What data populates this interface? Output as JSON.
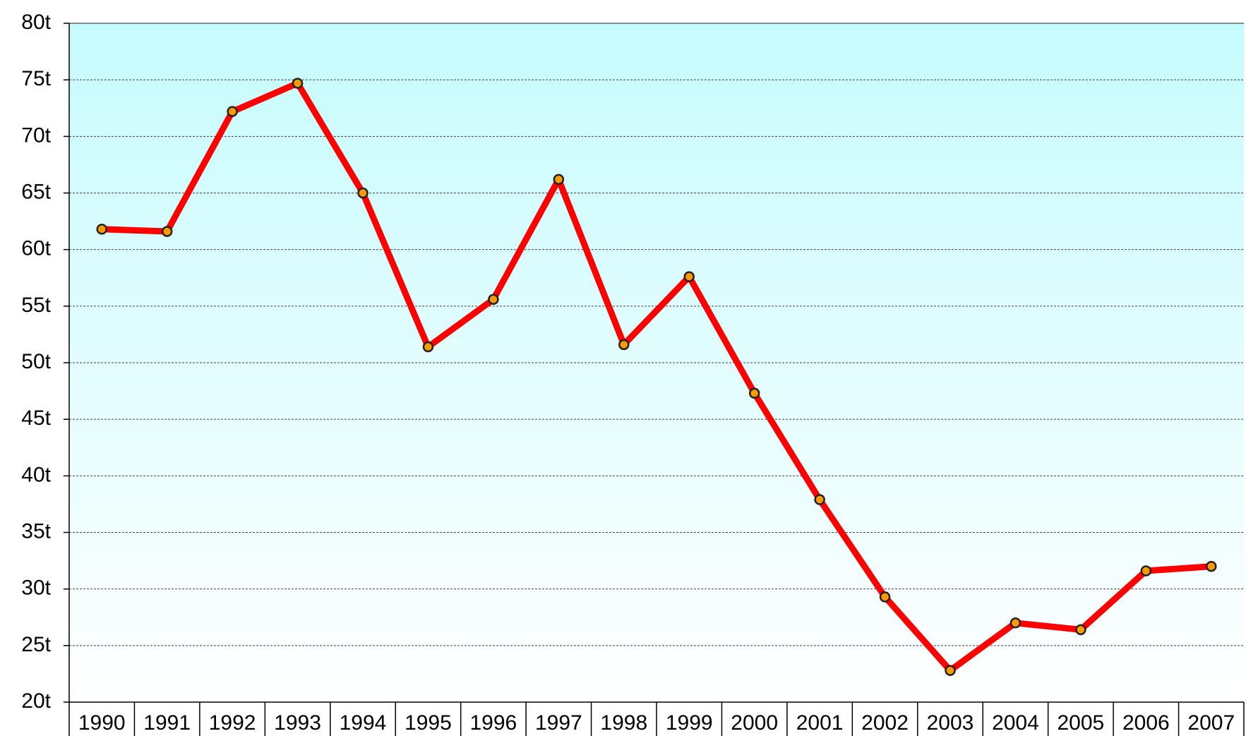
{
  "chart_data": {
    "type": "line",
    "categories": [
      "1990",
      "1991",
      "1992",
      "1993",
      "1994",
      "1995",
      "1996",
      "1997",
      "1998",
      "1999",
      "2000",
      "2001",
      "2002",
      "2003",
      "2004",
      "2005",
      "2006",
      "2007"
    ],
    "values": [
      61.8,
      61.6,
      72.2,
      74.7,
      65.0,
      51.4,
      55.6,
      66.2,
      51.6,
      57.6,
      47.3,
      37.9,
      29.3,
      22.8,
      27.0,
      26.4,
      31.6,
      32.0
    ],
    "color": "#ff0000",
    "marker_color": "#ff9900",
    "ylim": [
      20,
      80
    ],
    "yticks": [
      {
        "value": 20,
        "label": "20t"
      },
      {
        "value": 25,
        "label": "25t"
      },
      {
        "value": 30,
        "label": "30t"
      },
      {
        "value": 35,
        "label": "35t"
      },
      {
        "value": 40,
        "label": "40t"
      },
      {
        "value": 45,
        "label": "45t"
      },
      {
        "value": 50,
        "label": "50t"
      },
      {
        "value": 55,
        "label": "55t"
      },
      {
        "value": 60,
        "label": "60t"
      },
      {
        "value": 65,
        "label": "65t"
      },
      {
        "value": 70,
        "label": "70t"
      },
      {
        "value": 75,
        "label": "75t"
      },
      {
        "value": 80,
        "label": "80t"
      }
    ],
    "grid": true
  }
}
